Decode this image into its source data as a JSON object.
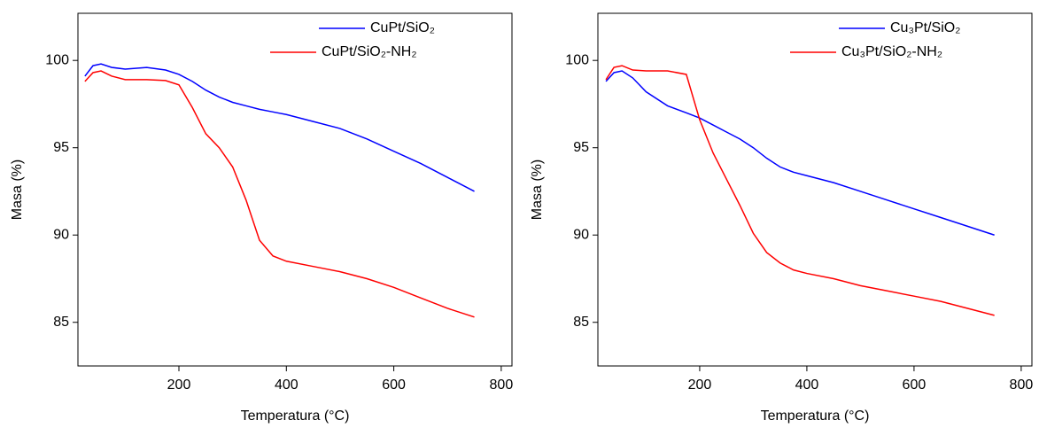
{
  "chart_data": [
    {
      "type": "line",
      "x_label": "Temperatura (°C)",
      "y_label": "Masa (%)",
      "x": [
        25,
        40,
        55,
        75,
        100,
        140,
        175,
        200,
        225,
        250,
        275,
        300,
        325,
        350,
        375,
        400,
        450,
        500,
        550,
        600,
        650,
        700,
        750
      ],
      "series": [
        {
          "name": "CuPt/SiO₂",
          "color": "#0000ff",
          "values": [
            99.1,
            99.7,
            99.8,
            99.6,
            99.5,
            99.6,
            99.45,
            99.2,
            98.8,
            98.3,
            97.9,
            97.6,
            97.4,
            97.2,
            97.05,
            96.9,
            96.5,
            96.1,
            95.5,
            94.8,
            94.1,
            93.3,
            92.5
          ]
        },
        {
          "name": "CuPt/SiO₂-NH₂",
          "color": "#ff0000",
          "values": [
            98.8,
            99.3,
            99.4,
            99.1,
            98.9,
            98.9,
            98.85,
            98.6,
            97.3,
            95.8,
            95.0,
            93.9,
            92.0,
            89.7,
            88.8,
            88.5,
            88.2,
            87.9,
            87.5,
            87.0,
            86.4,
            85.8,
            85.3
          ]
        }
      ],
      "xlim": [
        12,
        820
      ],
      "xticks": [
        200,
        400,
        600,
        800
      ],
      "ylim": [
        82.5,
        102.7
      ],
      "yticks": [
        85,
        90,
        95,
        100
      ],
      "legend": "upper right"
    },
    {
      "type": "line",
      "x_label": "Temperatura (°C)",
      "y_label": "Masa (%)",
      "x": [
        25,
        40,
        55,
        75,
        100,
        140,
        175,
        200,
        225,
        250,
        275,
        300,
        325,
        350,
        375,
        400,
        450,
        500,
        550,
        600,
        650,
        700,
        750
      ],
      "series": [
        {
          "name": "Cu₃Pt/SiO₂",
          "color": "#0000ff",
          "values": [
            98.8,
            99.3,
            99.4,
            99.0,
            98.2,
            97.4,
            97.0,
            96.7,
            96.3,
            95.9,
            95.5,
            95.0,
            94.4,
            93.9,
            93.6,
            93.4,
            93.0,
            92.5,
            92.0,
            91.5,
            91.0,
            90.5,
            90.0
          ]
        },
        {
          "name": "Cu₃Pt/SiO₂-NH₂",
          "color": "#ff0000",
          "values": [
            98.9,
            99.6,
            99.7,
            99.45,
            99.4,
            99.4,
            99.2,
            96.6,
            94.7,
            93.2,
            91.7,
            90.1,
            89.0,
            88.4,
            88.0,
            87.8,
            87.5,
            87.1,
            86.8,
            86.5,
            86.2,
            85.8,
            85.4
          ]
        }
      ],
      "xlim": [
        10,
        820
      ],
      "xticks": [
        200,
        400,
        600,
        800
      ],
      "ylim": [
        82.5,
        102.7
      ],
      "yticks": [
        85,
        90,
        95,
        100
      ],
      "legend": "upper right"
    }
  ]
}
